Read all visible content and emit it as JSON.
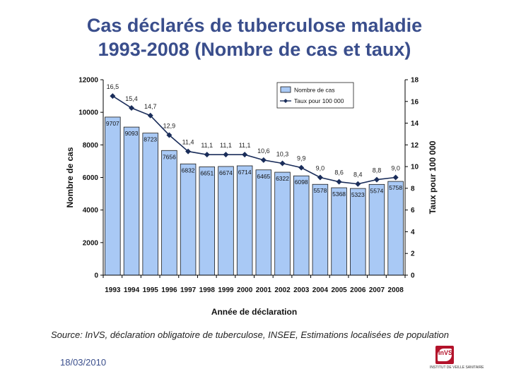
{
  "slide": {
    "title_line1": "Cas déclarés de tuberculose maladie",
    "title_line2": "1993-2008 (Nombre de cas et taux)",
    "source": "Source: InVS, déclaration obligatoire de tuberculose, INSEE, Estimations localisées de population",
    "date": "18/03/2010",
    "logo_text": "InVS",
    "logo_sub": "INSTITUT DE VEILLE SANITAIRE"
  },
  "chart_data": {
    "type": "bar+line",
    "categories": [
      "1993",
      "1994",
      "1995",
      "1996",
      "1997",
      "1998",
      "1999",
      "2000",
      "2001",
      "2002",
      "2003",
      "2004",
      "2005",
      "2006",
      "2007",
      "2008"
    ],
    "series": [
      {
        "name": "Nombre de cas",
        "type": "bar",
        "axis": "left",
        "values": [
          9707,
          9093,
          8723,
          7656,
          6832,
          6651,
          6674,
          6714,
          6465,
          6322,
          6098,
          5578,
          5368,
          5323,
          5574,
          5758
        ],
        "labels": [
          "9707",
          "9093",
          "8723",
          "7656",
          "6832",
          "6651",
          "6674",
          "6714",
          "6465",
          "6322",
          "6098",
          "5578",
          "5368",
          "5323",
          "5574",
          "5758"
        ]
      },
      {
        "name": "Taux pour 100 000",
        "type": "line",
        "axis": "right",
        "values": [
          16.5,
          15.4,
          14.7,
          12.9,
          11.4,
          11.1,
          11.1,
          11.1,
          10.6,
          10.3,
          9.9,
          9.0,
          8.6,
          8.4,
          8.8,
          9.0
        ],
        "labels": [
          "16,5",
          "15,4",
          "14,7",
          "12,9",
          "11,4",
          "11,1",
          "11,1",
          "11,1",
          "10,6",
          "10,3",
          "9,9",
          "9,0",
          "8,6",
          "8,4",
          "8,8",
          "9,0"
        ]
      }
    ],
    "xlabel": "Année de déclaration",
    "ylabel_left": "Nombre de cas",
    "ylabel_right": "Taux pour 100 000",
    "ylim_left": [
      0,
      12000
    ],
    "yticks_left": [
      "0",
      "2000",
      "4000",
      "6000",
      "8000",
      "10000",
      "12000"
    ],
    "ylim_right": [
      0,
      18
    ],
    "yticks_right": [
      "0",
      "2",
      "4",
      "6",
      "8",
      "10",
      "12",
      "14",
      "16",
      "18"
    ],
    "legend": [
      "Nombre de cas",
      "Taux pour 100 000"
    ],
    "legend_position": "top-right",
    "colors": {
      "bar_fill": "#a9c9f5",
      "bar_stroke": "#1a1a1a",
      "line": "#1a2d5a",
      "title": "#3a4e8c"
    }
  }
}
